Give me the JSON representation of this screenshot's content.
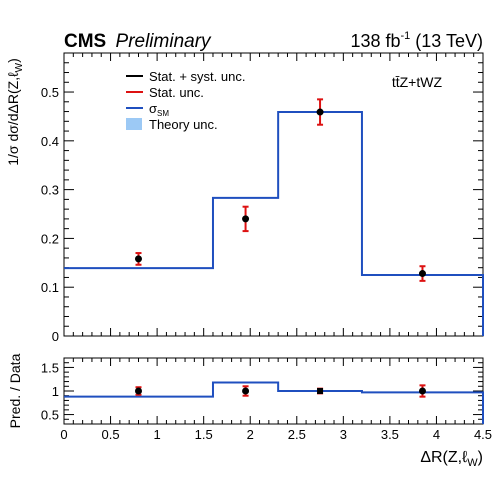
{
  "header": {
    "experiment": "CMS",
    "status": "Preliminary",
    "lumi": "138 fb",
    "lumi_exp": "-1",
    "energy": " (13 TeV)"
  },
  "process_label": "tt̄Z+tWZ",
  "legend": {
    "items": [
      {
        "label": "Stat. + syst. unc.",
        "color": "#000000",
        "kind": "line"
      },
      {
        "label": "Stat. unc.",
        "color": "#dd1111",
        "kind": "line"
      },
      {
        "label": "σ",
        "sub": "SM",
        "color": "#1f4fbf",
        "kind": "line"
      },
      {
        "label": "Theory unc.",
        "color": "#9cc9f5",
        "kind": "box"
      }
    ]
  },
  "colors": {
    "prediction": "#1f4fbf",
    "stat": "#dd1111",
    "total": "#000000",
    "theory": "#9cc9f5"
  },
  "chart_data": [
    {
      "type": "line",
      "panel": "main",
      "ylabel": "1/σ dσ/dΔR(Z,ℓ W)",
      "ylabel_main": "1/σ dσ/dΔR(Z,ℓ",
      "ylabel_sub": "W",
      "ylim": [
        0,
        0.58
      ],
      "yticks": [
        0,
        0.1,
        0.2,
        0.3,
        0.4,
        0.5
      ],
      "ytick_labels": [
        "0",
        "0.1",
        "0.2",
        "0.3",
        "0.4",
        "0.5"
      ],
      "xlim": [
        0,
        4.5
      ],
      "bin_edges": [
        0,
        1.6,
        2.3,
        3.2,
        4.5
      ],
      "prediction": [
        0.139,
        0.283,
        0.459,
        0.125
      ],
      "data": {
        "x": [
          0.8,
          1.95,
          2.75,
          3.85
        ],
        "y": [
          0.158,
          0.24,
          0.459,
          0.128
        ],
        "stat_err": [
          0.012,
          0.025,
          0.026,
          0.015
        ],
        "total_err": [
          0.012,
          0.025,
          0.026,
          0.015
        ]
      }
    },
    {
      "type": "line",
      "panel": "ratio",
      "ylabel": "Pred. / Data",
      "xlabel": "ΔR(Z,ℓ W)",
      "xlabel_main": "ΔR(Z,ℓ",
      "xlabel_sub": "W",
      "ylim": [
        0.3,
        1.7
      ],
      "yticks": [
        0.5,
        1,
        1.5
      ],
      "ytick_labels": [
        "0.5",
        "1",
        "1.5"
      ],
      "xlim": [
        0,
        4.5
      ],
      "xticks": [
        0,
        0.5,
        1,
        1.5,
        2,
        2.5,
        3,
        3.5,
        4,
        4.5
      ],
      "xtick_labels": [
        "0",
        "0.5",
        "1",
        "1.5",
        "2",
        "2.5",
        "3",
        "3.5",
        "4",
        "4.5"
      ],
      "bin_edges": [
        0,
        1.6,
        2.3,
        3.2,
        4.5
      ],
      "prediction": [
        0.88,
        1.18,
        1.0,
        0.97
      ],
      "data": {
        "x": [
          0.8,
          1.95,
          2.75,
          3.85
        ],
        "y": [
          1.0,
          1.0,
          1.0,
          1.0
        ],
        "stat_err": [
          0.08,
          0.1,
          0.05,
          0.12
        ],
        "total_err": [
          0.08,
          0.1,
          0.05,
          0.12
        ]
      }
    }
  ]
}
